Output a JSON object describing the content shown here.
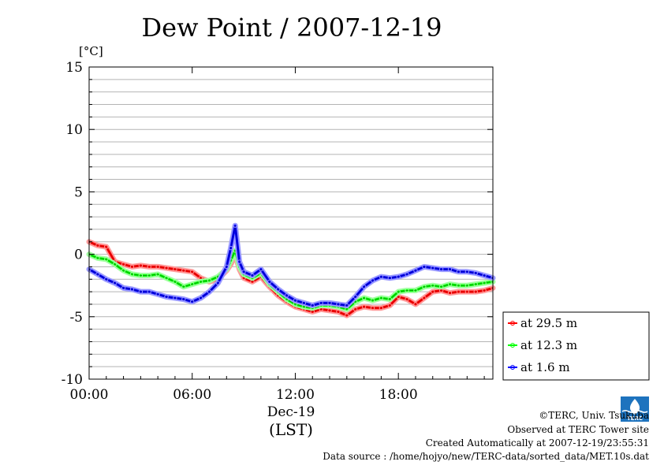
{
  "chart_data": {
    "type": "line",
    "title": "Dew Point / 2007-12-19",
    "ylabel": "[°C]",
    "xlabel": "(LST)",
    "x_date_label": "Dec-19",
    "ylim": [
      -10,
      15
    ],
    "xlim": [
      0,
      23.5
    ],
    "grid": true,
    "yticks": [
      -10,
      -5,
      0,
      5,
      10,
      15
    ],
    "yticks_labels": [
      "-10",
      "-5",
      "0",
      "5",
      "10",
      "15"
    ],
    "xticks": [
      0,
      6,
      12,
      18
    ],
    "xticks_labels": [
      "00:00",
      "06:00",
      "12:00",
      "18:00"
    ],
    "legend_position": "right",
    "x": [
      0,
      0.5,
      1,
      1.5,
      2,
      2.5,
      3,
      3.5,
      4,
      4.5,
      5,
      5.5,
      6,
      6.5,
      7,
      7.5,
      8,
      8.25,
      8.5,
      8.75,
      9,
      9.5,
      10,
      10.5,
      11,
      11.5,
      12,
      12.5,
      13,
      13.5,
      14,
      14.5,
      15,
      15.5,
      16,
      16.5,
      17,
      17.5,
      18,
      18.5,
      19,
      19.5,
      20,
      20.5,
      21,
      21.5,
      22,
      22.5,
      23,
      23.5
    ],
    "series": [
      {
        "name": "at 29.5 m",
        "color": "#ff0000",
        "values": [
          1.0,
          0.7,
          0.6,
          -0.6,
          -0.8,
          -1.0,
          -0.9,
          -1.0,
          -1.0,
          -1.1,
          -1.2,
          -1.3,
          -1.4,
          -1.9,
          -2.2,
          -2.0,
          -1.3,
          -0.8,
          0.0,
          -1.2,
          -1.9,
          -2.2,
          -1.8,
          -2.6,
          -3.3,
          -3.8,
          -4.2,
          -4.4,
          -4.6,
          -4.4,
          -4.5,
          -4.6,
          -4.9,
          -4.4,
          -4.2,
          -4.3,
          -4.3,
          -4.1,
          -3.4,
          -3.6,
          -4.0,
          -3.5,
          -3.0,
          -2.9,
          -3.1,
          -3.0,
          -3.0,
          -3.0,
          -2.9,
          -2.7
        ]
      },
      {
        "name": "at 12.3 m",
        "color": "#00ff00",
        "values": [
          0.0,
          -0.3,
          -0.4,
          -0.8,
          -1.3,
          -1.6,
          -1.7,
          -1.7,
          -1.6,
          -1.9,
          -2.2,
          -2.6,
          -2.4,
          -2.2,
          -2.1,
          -1.8,
          -1.2,
          -0.5,
          0.3,
          -1.0,
          -1.6,
          -1.9,
          -1.5,
          -2.4,
          -3.0,
          -3.6,
          -4.0,
          -4.2,
          -4.3,
          -4.1,
          -4.1,
          -4.2,
          -4.4,
          -3.8,
          -3.5,
          -3.7,
          -3.5,
          -3.6,
          -3.0,
          -2.9,
          -2.9,
          -2.6,
          -2.5,
          -2.6,
          -2.4,
          -2.5,
          -2.5,
          -2.4,
          -2.3,
          -2.2
        ]
      },
      {
        "name": "at 1.6 m",
        "color": "#0000ff",
        "values": [
          -1.2,
          -1.6,
          -2.0,
          -2.3,
          -2.7,
          -2.8,
          -3.0,
          -3.0,
          -3.2,
          -3.4,
          -3.5,
          -3.6,
          -3.8,
          -3.5,
          -3.0,
          -2.3,
          -1.0,
          0.5,
          2.3,
          -0.6,
          -1.4,
          -1.7,
          -1.2,
          -2.2,
          -2.8,
          -3.3,
          -3.7,
          -3.9,
          -4.1,
          -3.9,
          -3.9,
          -4.0,
          -4.1,
          -3.4,
          -2.6,
          -2.1,
          -1.8,
          -1.9,
          -1.8,
          -1.6,
          -1.3,
          -1.0,
          -1.1,
          -1.2,
          -1.2,
          -1.4,
          -1.4,
          -1.5,
          -1.7,
          -1.9
        ]
      }
    ]
  },
  "credits": {
    "copyright": "©TERC, Univ. Tsukuba",
    "observed": "Observed at TERC Tower site",
    "created": "Created Automatically at 2007-12-19/23:55:31",
    "source": "Data source : /home/hojyo/new/TERC-data/sorted_data/MET.10s.dat",
    "logo_text": "TERC"
  }
}
